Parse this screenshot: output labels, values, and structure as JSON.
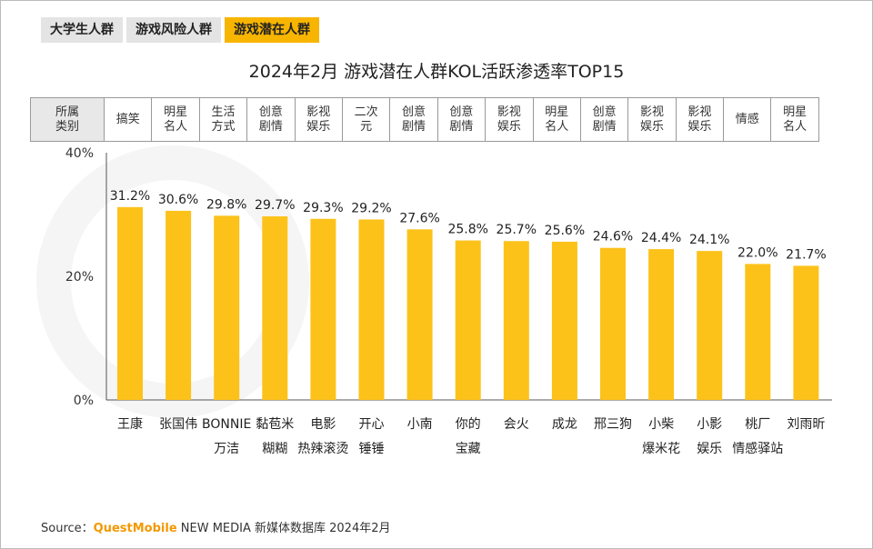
{
  "tabs": [
    "大学生人群",
    "游戏风险人群",
    "游戏潜在人群"
  ],
  "active_tab": 2,
  "category_header": "所属类别",
  "source": {
    "label": "Source：",
    "brand": "QuestMobile",
    "rest": " NEW MEDIA 新媒体数据库 2024年2月"
  },
  "chart_data": {
    "type": "bar",
    "title": "2024年2月 游戏潜在人群KOL活跃渗透率TOP15",
    "ylim": [
      0,
      40
    ],
    "yticks": [
      "0%",
      "20%",
      "40%"
    ],
    "ytick_values": [
      0,
      20,
      40
    ],
    "categories": [
      [
        "王康"
      ],
      [
        "张国伟"
      ],
      [
        "BONNIE",
        "万洁"
      ],
      [
        "黏苞米",
        "糊糊"
      ],
      [
        "电影",
        "热辣滚烫"
      ],
      [
        "开心",
        "锤锤"
      ],
      [
        "小南"
      ],
      [
        "你的",
        "宝藏"
      ],
      [
        "会火"
      ],
      [
        "成龙"
      ],
      [
        "邢三狗"
      ],
      [
        "小柴",
        "爆米花"
      ],
      [
        "小影",
        "娱乐"
      ],
      [
        "桃厂",
        "情感驿站"
      ],
      [
        "刘雨昕"
      ]
    ],
    "kol_types": [
      "搞笑",
      "明星名人",
      "生活方式",
      "创意剧情",
      "影视娱乐",
      "二次元",
      "创意剧情",
      "创意剧情",
      "影视娱乐",
      "明星名人",
      "创意剧情",
      "影视娱乐",
      "影视娱乐",
      "情感",
      "明星名人"
    ],
    "values": [
      31.2,
      30.6,
      29.8,
      29.7,
      29.3,
      29.2,
      27.6,
      25.8,
      25.7,
      25.6,
      24.6,
      24.4,
      24.1,
      22.0,
      21.7
    ],
    "value_labels": [
      "31.2%",
      "30.6%",
      "29.8%",
      "29.7%",
      "29.3%",
      "29.2%",
      "27.6%",
      "25.8%",
      "25.7%",
      "25.6%",
      "24.6%",
      "24.4%",
      "24.1%",
      "22.0%",
      "21.7%"
    ],
    "bar_color": "#fcc21a"
  }
}
